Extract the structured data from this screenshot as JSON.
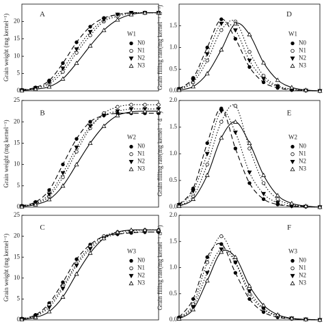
{
  "chart_data": [
    {
      "type": "line",
      "panel": "A",
      "group": "W1",
      "ylabel": "Grain weight (mg kernel⁻¹)",
      "x": [
        0,
        1,
        2,
        3,
        4,
        5,
        6,
        7,
        8,
        9,
        10
      ],
      "xlim": [
        0,
        10
      ],
      "ylim": [
        0,
        25
      ],
      "yticks": [
        0,
        5,
        10,
        15,
        20
      ],
      "series": [
        {
          "name": "N0",
          "color": "#000",
          "marker": "dot",
          "dash": "long",
          "values": [
            0.3,
            1,
            3,
            8,
            14,
            18.5,
            21,
            22,
            22.5,
            22.5,
            22.5
          ]
        },
        {
          "name": "N1",
          "color": "#000",
          "marker": "ring",
          "dash": "dot",
          "values": [
            0.2,
            0.7,
            2,
            5.5,
            11,
            16,
            20,
            21.5,
            22.3,
            22.5,
            22.5
          ]
        },
        {
          "name": "N2",
          "color": "#000",
          "marker": "down",
          "dash": "dot",
          "values": [
            0.2,
            0.8,
            2.5,
            6.5,
            12,
            17,
            20.5,
            22,
            22.5,
            22.5,
            22.5
          ]
        },
        {
          "name": "N3",
          "color": "#000",
          "marker": "up",
          "dash": "solid",
          "values": [
            0.1,
            0.5,
            1.2,
            3.5,
            8,
            13,
            17.5,
            20.5,
            22,
            22.5,
            22.5
          ]
        }
      ]
    },
    {
      "type": "line",
      "panel": "D",
      "group": "W1",
      "ylabel": "Grain filling rate(mg kernel⁻¹ d⁻¹)",
      "x": [
        0,
        1,
        2,
        3,
        4,
        5,
        6,
        7,
        8,
        9,
        10
      ],
      "xlim": [
        0,
        10
      ],
      "ylim": [
        0,
        2
      ],
      "yticks": [
        {
          "value": 0,
          "label": "0.0"
        },
        0.5,
        {
          "value": 1,
          "label": "1.0"
        },
        1.5
      ],
      "series": [
        {
          "name": "N0",
          "color": "#000",
          "marker": "dot",
          "dash": "long",
          "values": [
            0.05,
            0.3,
            1,
            1.65,
            1.2,
            0.55,
            0.2,
            0.07,
            0.02,
            0.01,
            0
          ]
        },
        {
          "name": "N1",
          "color": "#000",
          "marker": "ring",
          "dash": "dot",
          "values": [
            0.03,
            0.2,
            0.7,
            1.4,
            1.6,
            0.9,
            0.35,
            0.12,
            0.04,
            0.01,
            0
          ]
        },
        {
          "name": "N2",
          "color": "#000",
          "marker": "down",
          "dash": "dot",
          "values": [
            0.04,
            0.25,
            0.85,
            1.55,
            1.4,
            0.7,
            0.28,
            0.1,
            0.03,
            0.01,
            0
          ]
        },
        {
          "name": "N3",
          "color": "#000",
          "marker": "up",
          "dash": "solid",
          "values": [
            0.02,
            0.1,
            0.4,
            0.95,
            1.55,
            1.3,
            0.65,
            0.25,
            0.08,
            0.02,
            0
          ]
        }
      ]
    },
    {
      "type": "line",
      "panel": "B",
      "group": "W2",
      "ylabel": "Grain weight (mg kernel⁻¹)",
      "x": [
        0,
        1,
        2,
        3,
        4,
        5,
        6,
        7,
        8,
        9,
        10
      ],
      "xlim": [
        0,
        10
      ],
      "ylim": [
        0,
        25
      ],
      "yticks": [
        0,
        5,
        10,
        15,
        20,
        25
      ],
      "series": [
        {
          "name": "N0",
          "color": "#000",
          "marker": "dot",
          "dash": "long",
          "values": [
            0.3,
            1.2,
            4,
            10,
            16,
            20,
            21.5,
            22,
            22,
            22,
            22
          ]
        },
        {
          "name": "N1",
          "color": "#000",
          "marker": "ring",
          "dash": "dot",
          "values": [
            0.2,
            0.8,
            2.5,
            7,
            13,
            18.5,
            22,
            23.5,
            24,
            24,
            24
          ]
        },
        {
          "name": "N2",
          "color": "#000",
          "marker": "down",
          "dash": "dot",
          "values": [
            0.2,
            1,
            3,
            8,
            14,
            19,
            21.5,
            22.5,
            23,
            23,
            23
          ]
        },
        {
          "name": "N3",
          "color": "#000",
          "marker": "up",
          "dash": "solid",
          "values": [
            0.1,
            0.6,
            1.8,
            5,
            10,
            15,
            19,
            21.5,
            22.3,
            22.5,
            22.5
          ]
        }
      ]
    },
    {
      "type": "line",
      "panel": "E",
      "group": "W2",
      "ylabel": "Grain filling rate(mg kernel⁻¹ d⁻¹)",
      "x": [
        0,
        1,
        2,
        3,
        4,
        5,
        6,
        7,
        8,
        9,
        10
      ],
      "xlim": [
        0,
        10
      ],
      "ylim": [
        0,
        2
      ],
      "yticks": [
        {
          "value": 0,
          "label": "0.0"
        },
        0.5,
        {
          "value": 1,
          "label": "1.0"
        },
        1.5,
        {
          "value": 2,
          "label": "2.0"
        }
      ],
      "series": [
        {
          "name": "N0",
          "color": "#000",
          "marker": "dot",
          "dash": "long",
          "values": [
            0.05,
            0.35,
            1.2,
            1.85,
            1.1,
            0.45,
            0.15,
            0.05,
            0.02,
            0.01,
            0
          ]
        },
        {
          "name": "N1",
          "color": "#000",
          "marker": "ring",
          "dash": "dot",
          "values": [
            0.03,
            0.2,
            0.8,
            1.6,
            1.9,
            1.1,
            0.45,
            0.15,
            0.05,
            0.01,
            0
          ]
        },
        {
          "name": "N2",
          "color": "#000",
          "marker": "down",
          "dash": "dot",
          "values": [
            0.04,
            0.3,
            1,
            1.8,
            1.4,
            0.65,
            0.25,
            0.08,
            0.02,
            0.01,
            0
          ]
        },
        {
          "name": "N3",
          "color": "#000",
          "marker": "up",
          "dash": "solid",
          "values": [
            0.02,
            0.15,
            0.6,
            1.3,
            1.6,
            1.2,
            0.6,
            0.22,
            0.07,
            0.02,
            0
          ]
        }
      ]
    },
    {
      "type": "line",
      "panel": "C",
      "group": "W3",
      "ylabel": "Grain weight (mg kernel⁻¹)",
      "x": [
        0,
        1,
        2,
        3,
        4,
        5,
        6,
        7,
        8,
        9,
        10
      ],
      "xlim": [
        0,
        10
      ],
      "ylim": [
        0,
        25
      ],
      "yticks": [
        0,
        5,
        10,
        15,
        20,
        25
      ],
      "series": [
        {
          "name": "N0",
          "color": "#000",
          "marker": "dot",
          "dash": "long",
          "values": [
            0.3,
            1.2,
            4,
            9,
            14.5,
            18,
            20,
            20.5,
            20.8,
            21,
            21
          ]
        },
        {
          "name": "N1",
          "color": "#000",
          "marker": "ring",
          "dash": "dot",
          "values": [
            0.3,
            1,
            3.5,
            8,
            13.5,
            17.5,
            20,
            21,
            21.3,
            21.5,
            21.5
          ]
        },
        {
          "name": "N2",
          "color": "#000",
          "marker": "down",
          "dash": "dot",
          "values": [
            0.2,
            0.9,
            3,
            7.5,
            13,
            17,
            19.5,
            20.5,
            21,
            21,
            21
          ]
        },
        {
          "name": "N3",
          "color": "#000",
          "marker": "up",
          "dash": "solid",
          "values": [
            0.1,
            0.6,
            2,
            5.5,
            11,
            16,
            19.5,
            21,
            21.5,
            21.5,
            21.5
          ]
        }
      ]
    },
    {
      "type": "line",
      "panel": "F",
      "group": "W3",
      "ylabel": "Grain filling rate(mg kernel⁻¹ d⁻¹)",
      "x": [
        0,
        1,
        2,
        3,
        4,
        5,
        6,
        7,
        8,
        9,
        10
      ],
      "xlim": [
        0,
        10
      ],
      "ylim": [
        0,
        2
      ],
      "yticks": [
        {
          "value": 0,
          "label": "0.0"
        },
        0.5,
        {
          "value": 1,
          "label": "1.0"
        },
        1.5,
        {
          "value": 2,
          "label": "2.0"
        }
      ],
      "series": [
        {
          "name": "N0",
          "color": "#000",
          "marker": "dot",
          "dash": "long",
          "values": [
            0.05,
            0.4,
            1.2,
            1.45,
            0.9,
            0.4,
            0.15,
            0.05,
            0.02,
            0.01,
            0
          ]
        },
        {
          "name": "N1",
          "color": "#000",
          "marker": "ring",
          "dash": "dot",
          "values": [
            0.04,
            0.3,
            1.1,
            1.6,
            1.1,
            0.5,
            0.2,
            0.07,
            0.02,
            0.01,
            0
          ]
        },
        {
          "name": "N2",
          "color": "#000",
          "marker": "down",
          "dash": "dot",
          "values": [
            0.03,
            0.25,
            0.9,
            1.35,
            1.1,
            0.55,
            0.22,
            0.08,
            0.03,
            0.01,
            0
          ]
        },
        {
          "name": "N3",
          "color": "#000",
          "marker": "up",
          "dash": "solid",
          "values": [
            0.02,
            0.2,
            0.75,
            1.3,
            1.2,
            0.65,
            0.28,
            0.1,
            0.03,
            0.01,
            0
          ]
        }
      ]
    }
  ]
}
